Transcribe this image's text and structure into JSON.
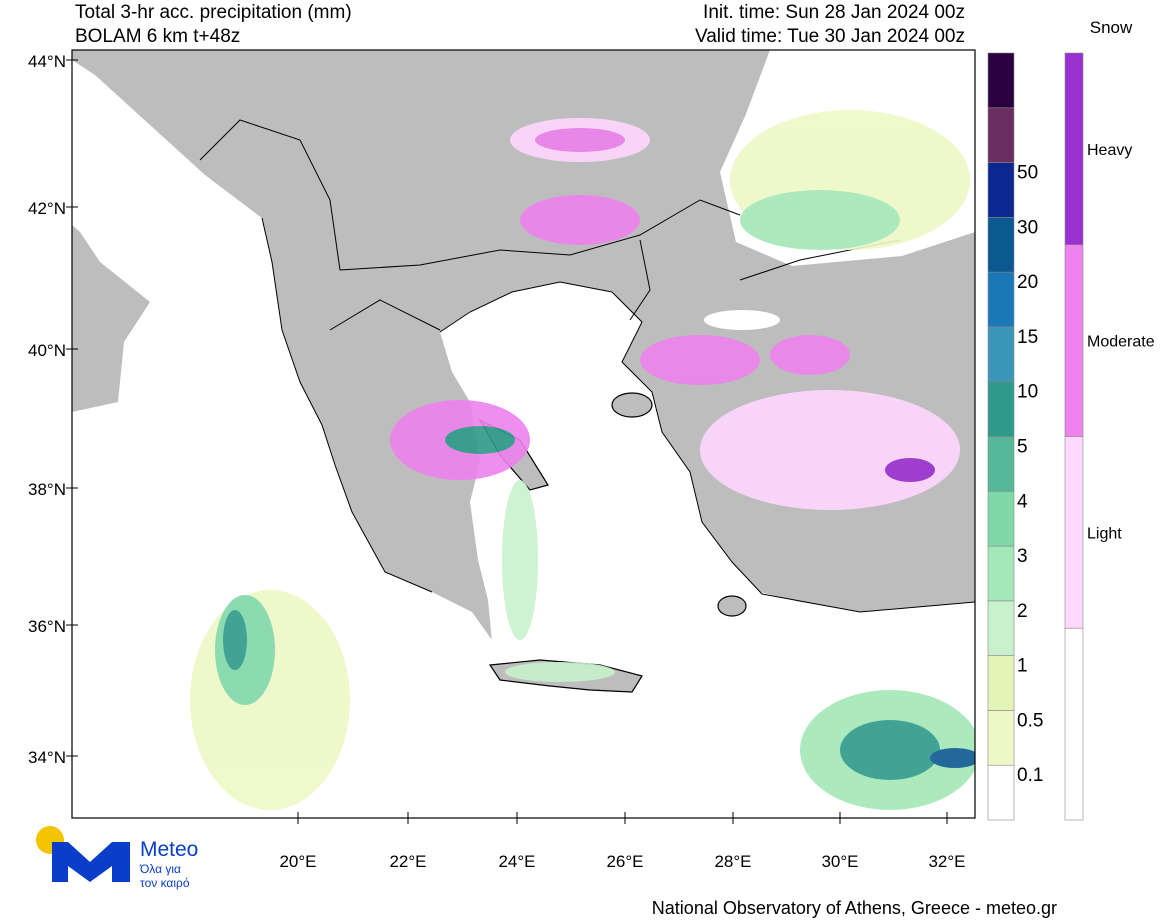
{
  "header": {
    "title_left": [
      "Total 3-hr acc. precipitation (mm)",
      "BOLAM 6 km t+48z"
    ],
    "title_right": [
      "Init. time: Sun 28 Jan 2024 00z",
      "Valid time: Tue 30 Jan 2024 00z"
    ]
  },
  "map": {
    "lat_labels": [
      "44°N",
      "42°N",
      "40°N",
      "38°N",
      "36°N",
      "34°N"
    ],
    "lon_labels": [
      "20°E",
      "22°E",
      "24°E",
      "26°E",
      "28°E",
      "30°E",
      "32°E"
    ]
  },
  "precip_scale": {
    "labels": [
      "0.1",
      "0.5",
      "1",
      "2",
      "3",
      "4",
      "5",
      "10",
      "15",
      "20",
      "30",
      "50"
    ],
    "colors": [
      "#ffffff",
      "#eef8c6",
      "#e2f4b6",
      "#c8f2cc",
      "#a4e8b8",
      "#80d8a8",
      "#54b898",
      "#2e9a8a",
      "#3a96b8",
      "#1a78b8",
      "#0c5890",
      "#0c2890",
      "#6a2e60",
      "#2a0040"
    ]
  },
  "snow_scale": {
    "title": "Snow",
    "labels": [
      "Heavy",
      "Moderate",
      "Light"
    ],
    "colors": [
      "#9b30d0",
      "#ee82ee",
      "#ffd8ff",
      "#ffffff"
    ]
  },
  "logo": {
    "name": "Meteo",
    "tagline": [
      "Όλα για",
      "τον καιρό"
    ]
  },
  "footer": "National Observatory of Athens, Greece - meteo.gr"
}
